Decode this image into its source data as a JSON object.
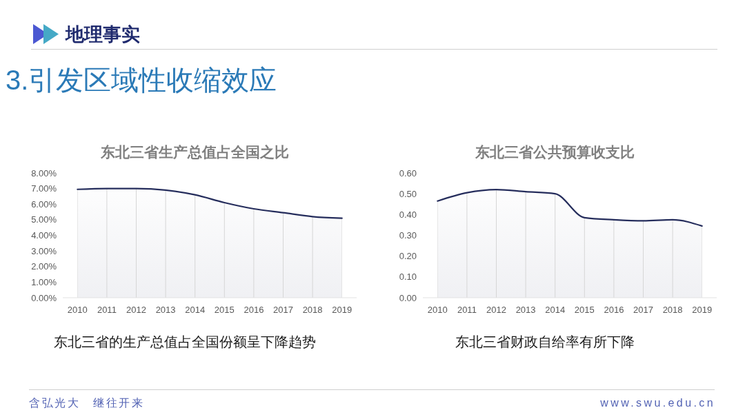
{
  "chart_data": [
    {
      "type": "other",
      "title": "地理事实",
      "subtitle": "3.引发区域性收缩效应",
      "annotations": [
        "含弘光大　继往开来",
        "www.swu.edu.cn"
      ]
    },
    {
      "type": "area",
      "title": "东北三省生产总值占全国之比",
      "categories": [
        "2010",
        "2011",
        "2012",
        "2013",
        "2014",
        "2015",
        "2016",
        "2017",
        "2018",
        "2019"
      ],
      "values": [
        6.95,
        7.0,
        7.0,
        6.9,
        6.6,
        6.1,
        5.7,
        5.45,
        5.2,
        5.1
      ],
      "color": "#252d5c",
      "ylim": [
        0,
        8
      ],
      "yticks": [
        {
          "value": 0,
          "label": "0.00%"
        },
        {
          "value": 1,
          "label": "1.00%"
        },
        {
          "value": 2,
          "label": "2.00%"
        },
        {
          "value": 3,
          "label": "3.00%"
        },
        {
          "value": 4,
          "label": "4.00%"
        },
        {
          "value": 5,
          "label": "5.00%"
        },
        {
          "value": 6,
          "label": "6.00%"
        },
        {
          "value": 7,
          "label": "7.00%"
        },
        {
          "value": 8,
          "label": "8.00%"
        }
      ],
      "grid": "x",
      "annotations": [
        "东北三省的生产总值占全国份额呈下降趋势"
      ]
    },
    {
      "type": "area",
      "title": "东北三省公共预算收支比",
      "categories": [
        "2010",
        "2011",
        "2012",
        "2013",
        "2014",
        "2015",
        "2016",
        "2017",
        "2018",
        "2019"
      ],
      "values": [
        0.465,
        0.505,
        0.52,
        0.51,
        0.5,
        0.385,
        0.375,
        0.37,
        0.375,
        0.345
      ],
      "color": "#252d5c",
      "ylim": [
        0,
        0.6
      ],
      "yticks": [
        {
          "value": 0,
          "label": "0.00"
        },
        {
          "value": 0.1,
          "label": "0.10"
        },
        {
          "value": 0.2,
          "label": "0.20"
        },
        {
          "value": 0.3,
          "label": "0.30"
        },
        {
          "value": 0.4,
          "label": "0.40"
        },
        {
          "value": 0.5,
          "label": "0.50"
        },
        {
          "value": 0.6,
          "label": "0.60"
        }
      ],
      "grid": "x",
      "annotations": [
        "东北三省财政自给率有所下降"
      ]
    }
  ]
}
